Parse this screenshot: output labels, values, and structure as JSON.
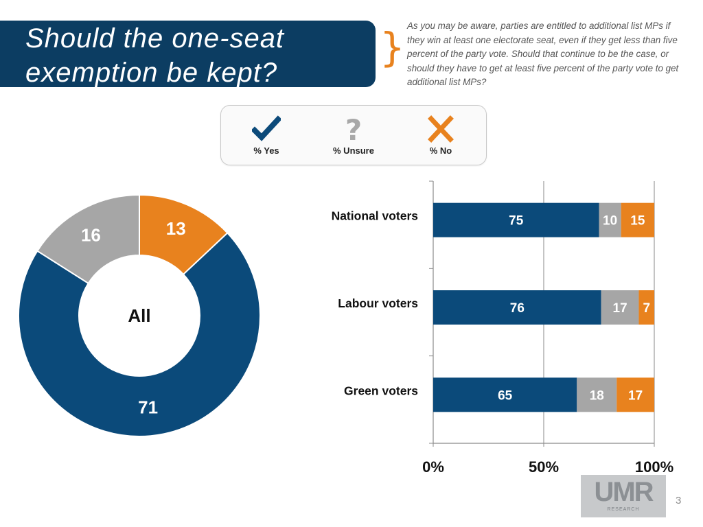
{
  "header": {
    "title": "Should the one-seat exemption be kept?",
    "question": "As you may be aware, parties are entitled to additional list MPs if they win at least one electorate seat, even if they get less than five percent of the party vote. Should that continue to be the case, or should they have to get at least five percent of the party vote to get additional list MPs?"
  },
  "legend": {
    "items": [
      {
        "label": "% Yes",
        "icon": "checkmark-icon",
        "color": "#0c4a7a"
      },
      {
        "label": "% Unsure",
        "icon": "question-mark-icon",
        "color": "#a8a8a8"
      },
      {
        "label": "% No",
        "icon": "cross-icon",
        "color": "#e8821e"
      }
    ]
  },
  "colors": {
    "yes": "#0b4a7a",
    "unsure": "#a6a6a6",
    "no": "#e8821e"
  },
  "logo": {
    "text": "UMR",
    "subtext": "RESEARCH"
  },
  "page_number": "3",
  "chart_data": [
    {
      "type": "pie",
      "donut": true,
      "center_label": "All",
      "slices": [
        {
          "name": "Yes",
          "value": 71
        },
        {
          "name": "Unsure",
          "value": 16
        },
        {
          "name": "No",
          "value": 13
        }
      ]
    },
    {
      "type": "bar",
      "orientation": "horizontal",
      "stacked": true,
      "categories": [
        "National voters",
        "Labour voters",
        "Green voters"
      ],
      "series": [
        {
          "name": "Yes",
          "values": [
            75,
            76,
            65
          ]
        },
        {
          "name": "Unsure",
          "values": [
            10,
            17,
            18
          ]
        },
        {
          "name": "No",
          "values": [
            15,
            7,
            17
          ]
        }
      ],
      "xlim": [
        0,
        100
      ],
      "xticks": [
        "0%",
        "50%",
        "100%"
      ],
      "grid": true
    }
  ]
}
